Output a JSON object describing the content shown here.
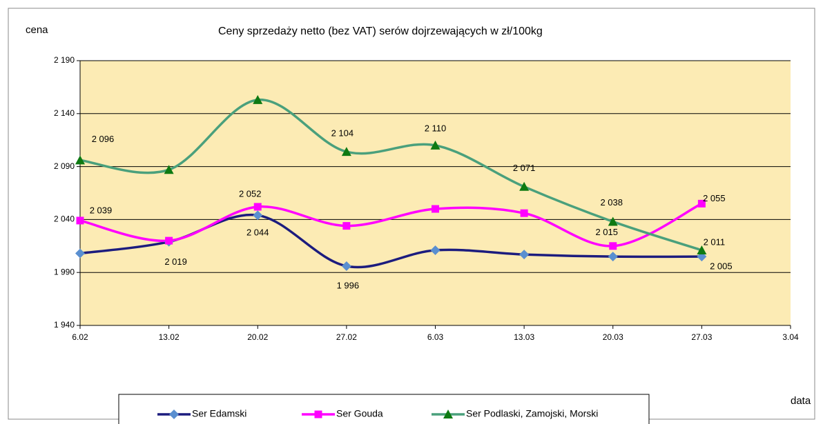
{
  "chart_data": {
    "type": "line",
    "title": "Ceny sprzedaży netto (bez VAT) serów dojrzewających  w zł/100kg",
    "y_label": "cena",
    "x_label": "data",
    "categories": [
      "6.02",
      "13.02",
      "20.02",
      "27.02",
      "6.03",
      "13.03",
      "20.03",
      "27.03",
      "3.04"
    ],
    "series": [
      {
        "name": "Ser Edamski",
        "color": "#1c1c7e",
        "marker_color": "#5a8fd0",
        "marker": "diamond",
        "values": [
          2008,
          2019,
          2044,
          1996,
          2011,
          2007,
          2005,
          2005,
          null
        ],
        "value_labels": [
          null,
          "2 019",
          "2 044",
          "1 996",
          null,
          null,
          null,
          "2 005",
          null
        ]
      },
      {
        "name": "Ser Gouda",
        "color": "#ff00ff",
        "marker_color": "#ff00ff",
        "marker": "square",
        "values": [
          2039,
          2020,
          2052,
          2034,
          2050,
          2046,
          2015,
          2055,
          null
        ],
        "value_labels": [
          "2 039",
          null,
          "2 052",
          null,
          null,
          null,
          "2 015",
          "2 055",
          null
        ]
      },
      {
        "name": "Ser Podlaski, Zamojski, Morski",
        "color": "#4aa07c",
        "marker_color": "#0e7a12",
        "marker": "triangle",
        "values": [
          2096,
          2087,
          2153,
          2104,
          2110,
          2071,
          2038,
          2011,
          null
        ],
        "value_labels": [
          "2 096",
          null,
          null,
          "2 104",
          "2 110",
          "2 071",
          "2 038",
          "2 011",
          null
        ]
      }
    ],
    "ylim": [
      1940,
      2190
    ],
    "yticks": [
      {
        "value": 1940,
        "label": "1 940"
      },
      {
        "value": 1990,
        "label": "1 990"
      },
      {
        "value": 2040,
        "label": "2 040"
      },
      {
        "value": 2090,
        "label": "2 090"
      },
      {
        "value": 2140,
        "label": "2 140"
      },
      {
        "value": 2190,
        "label": "2 190"
      }
    ],
    "grid": true,
    "plot_background": "#fcebb4",
    "legend": "bottom"
  }
}
